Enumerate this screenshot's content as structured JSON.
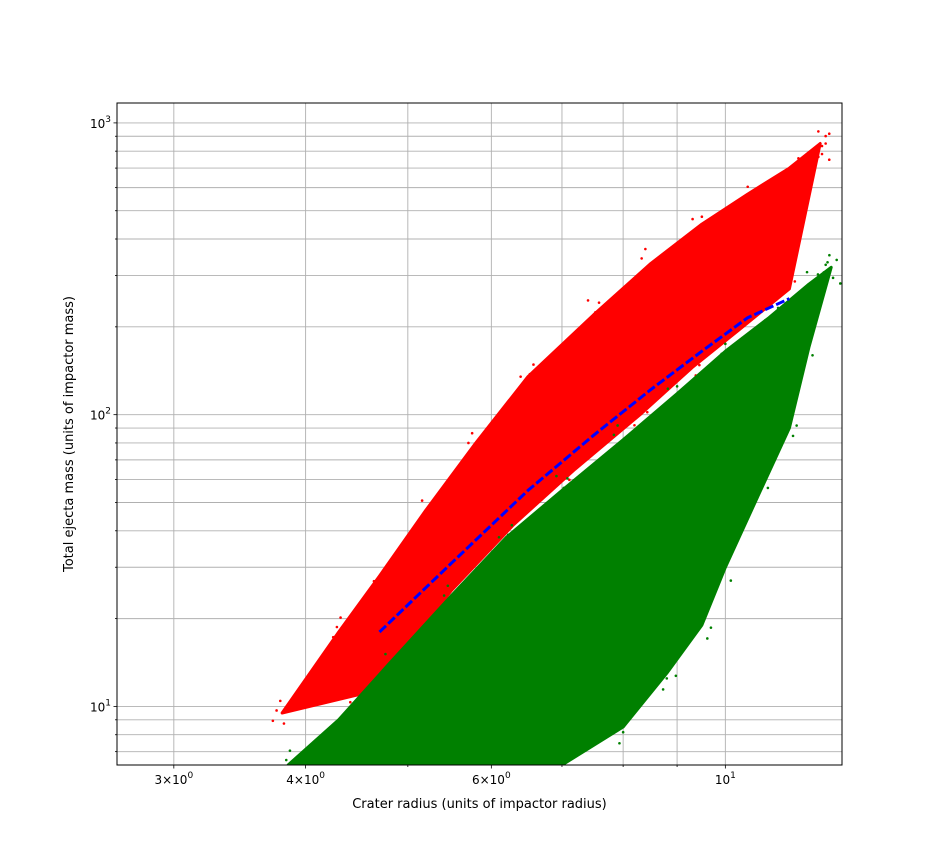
{
  "chart_data": {
    "type": "scatter",
    "title": "",
    "xlabel": "Crater radius (units of impactor radius)",
    "ylabel": "Total ejecta mass (units of impactor mass)",
    "xscale": "log",
    "yscale": "log",
    "xlim": [
      2.65,
      12.9
    ],
    "ylim": [
      6.3,
      1170
    ],
    "grid": true,
    "grid_which": "both",
    "legend": "none",
    "x_ticks": [
      {
        "value": 3,
        "base": "3×10",
        "exp": "0"
      },
      {
        "value": 4,
        "base": "4×10",
        "exp": "0"
      },
      {
        "value": 6,
        "base": "6×10",
        "exp": "0"
      },
      {
        "value": 10,
        "base": "10",
        "exp": "1"
      }
    ],
    "y_ticks": [
      {
        "value": 10,
        "base": "10",
        "exp": "1"
      },
      {
        "value": 100,
        "base": "10",
        "exp": "2"
      },
      {
        "value": 1000,
        "base": "10",
        "exp": "3"
      }
    ],
    "series": [
      {
        "color": "#ff0000",
        "kind": "band",
        "upper": [
          [
            4.3,
            18
          ],
          [
            4.7,
            28
          ],
          [
            5.2,
            47
          ],
          [
            5.8,
            80
          ],
          [
            6.5,
            135
          ],
          [
            7.5,
            220
          ],
          [
            8.5,
            330
          ],
          [
            9.5,
            450
          ],
          [
            10.5,
            570
          ],
          [
            11.5,
            700
          ],
          [
            12.3,
            850
          ]
        ],
        "lower": [
          [
            3.8,
            9.5
          ],
          [
            4.5,
            11
          ],
          [
            5.0,
            16
          ],
          [
            5.5,
            25
          ],
          [
            6.3,
            42
          ],
          [
            7.2,
            65
          ],
          [
            8.3,
            100
          ],
          [
            9.3,
            145
          ],
          [
            10.3,
            195
          ],
          [
            11.5,
            270
          ],
          [
            12.3,
            850
          ]
        ]
      },
      {
        "color": "#008000",
        "kind": "band",
        "upper": [
          [
            3.85,
            6.3
          ],
          [
            4.3,
            9
          ],
          [
            4.8,
            14
          ],
          [
            5.5,
            24
          ],
          [
            6.2,
            38
          ],
          [
            7.0,
            55
          ],
          [
            8.0,
            82
          ],
          [
            9.0,
            118
          ],
          [
            10.0,
            165
          ],
          [
            11.0,
            215
          ],
          [
            12.0,
            280
          ],
          [
            12.6,
            320
          ]
        ],
        "lower": [
          [
            7.0,
            6.3
          ],
          [
            8.0,
            8.5
          ],
          [
            8.8,
            13
          ],
          [
            9.5,
            19
          ],
          [
            10.0,
            30
          ],
          [
            10.8,
            55
          ],
          [
            11.5,
            90
          ],
          [
            12.0,
            170
          ],
          [
            12.6,
            320
          ]
        ]
      },
      {
        "color": "#0000ff",
        "kind": "line",
        "points": [
          [
            4.7,
            18
          ],
          [
            5.5,
            31
          ],
          [
            6.5,
            55
          ],
          [
            7.5,
            85
          ],
          [
            8.5,
            122
          ],
          [
            9.5,
            165
          ],
          [
            10.5,
            215
          ],
          [
            11.5,
            250
          ]
        ]
      }
    ]
  }
}
